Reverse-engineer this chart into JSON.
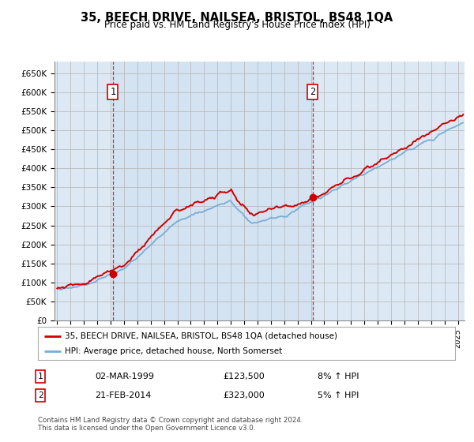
{
  "title": "35, BEECH DRIVE, NAILSEA, BRISTOL, BS48 1QA",
  "subtitle": "Price paid vs. HM Land Registry's House Price Index (HPI)",
  "ylim": [
    0,
    680000
  ],
  "yticks": [
    0,
    50000,
    100000,
    150000,
    200000,
    250000,
    300000,
    350000,
    400000,
    450000,
    500000,
    550000,
    600000,
    650000
  ],
  "xlim_start": 1994.8,
  "xlim_end": 2025.5,
  "grid_color": "#bbbbbb",
  "bg_color": "#dce9f5",
  "fig_bg": "#ffffff",
  "red_color": "#cc0000",
  "blue_color": "#7aadd4",
  "shade_color": "#ccdff0",
  "transaction1": {
    "year": 1999.17,
    "price": 123500
  },
  "transaction2": {
    "year": 2014.13,
    "price": 323000
  },
  "legend_red": "35, BEECH DRIVE, NAILSEA, BRISTOL, BS48 1QA (detached house)",
  "legend_blue": "HPI: Average price, detached house, North Somerset",
  "table_rows": [
    [
      "1",
      "02-MAR-1999",
      "£123,500",
      "8% ↑ HPI"
    ],
    [
      "2",
      "21-FEB-2014",
      "£323,000",
      "5% ↑ HPI"
    ]
  ],
  "footer": "Contains HM Land Registry data © Crown copyright and database right 2024.\nThis data is licensed under the Open Government Licence v3.0."
}
